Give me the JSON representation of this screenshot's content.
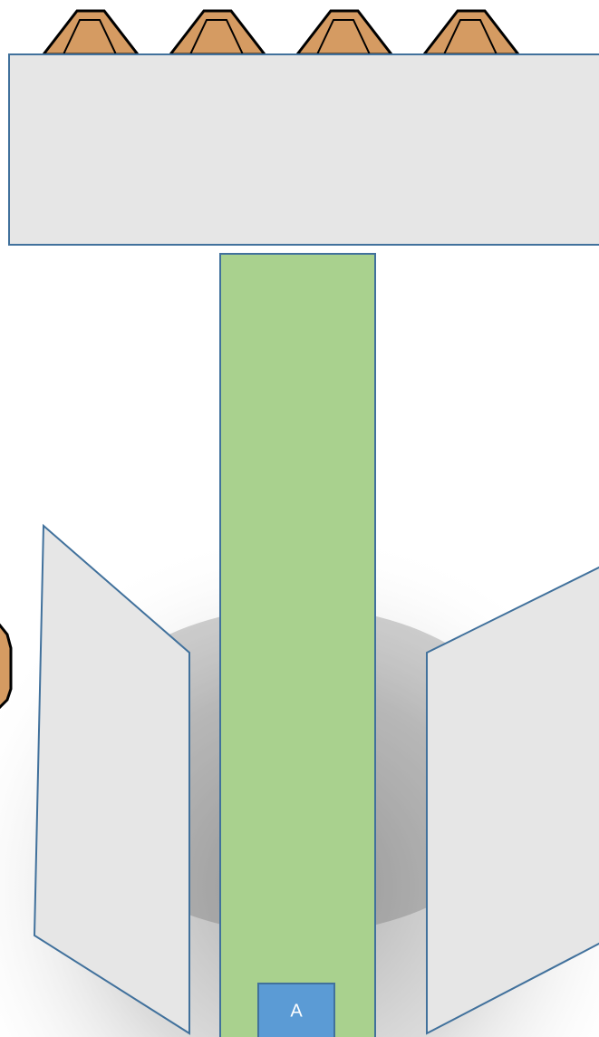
{
  "stage": {
    "label": "A"
  }
}
